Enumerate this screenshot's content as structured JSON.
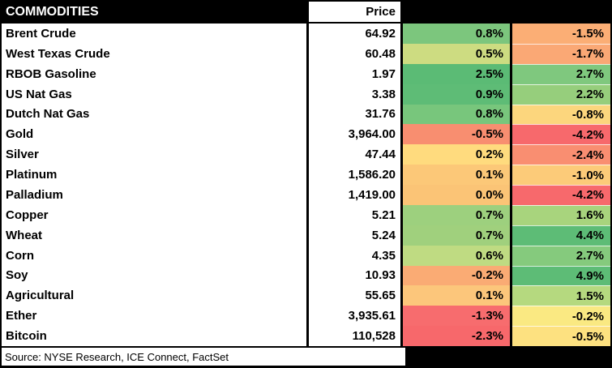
{
  "header": {
    "commodities_label": "COMMODITIES",
    "price_label": "Price"
  },
  "rows": [
    {
      "name": "Brent Crude",
      "price": "64.92",
      "pct1": "0.8%",
      "pct1_color": "#7CC67D",
      "pct2": "-1.5%",
      "pct2_color": "#FBAE75"
    },
    {
      "name": "West Texas Crude",
      "price": "60.48",
      "pct1": "0.5%",
      "pct1_color": "#CDDC81",
      "pct2": "-1.7%",
      "pct2_color": "#FAA875"
    },
    {
      "name": "RBOB Gasoline",
      "price": "1.97",
      "pct1": "2.5%",
      "pct1_color": "#5BBB75",
      "pct2": "2.7%",
      "pct2_color": "#7FC87E"
    },
    {
      "name": "US Nat Gas",
      "price": "3.38",
      "pct1": "0.9%",
      "pct1_color": "#5EBC76",
      "pct2": "2.2%",
      "pct2_color": "#96CE7C"
    },
    {
      "name": "Dutch Nat Gas",
      "price": "31.76",
      "pct1": "0.8%",
      "pct1_color": "#78C67C",
      "pct2": "-0.8%",
      "pct2_color": "#FCD67D"
    },
    {
      "name": "Gold",
      "price": "3,964.00",
      "pct1": "-0.5%",
      "pct1_color": "#F88E70",
      "pct2": "-4.2%",
      "pct2_color": "#F7696C"
    },
    {
      "name": "Silver",
      "price": "47.44",
      "pct1": "0.2%",
      "pct1_color": "#FFDB7E",
      "pct2": "-2.4%",
      "pct2_color": "#F98E71"
    },
    {
      "name": "Platinum",
      "price": "1,586.20",
      "pct1": "0.1%",
      "pct1_color": "#FCC878",
      "pct2": "-1.0%",
      "pct2_color": "#FCCB79"
    },
    {
      "name": "Palladium",
      "price": "1,419.00",
      "pct1": "0.0%",
      "pct1_color": "#FBC476",
      "pct2": "-4.2%",
      "pct2_color": "#F7696C"
    },
    {
      "name": "Copper",
      "price": "5.21",
      "pct1": "0.7%",
      "pct1_color": "#9DD07E",
      "pct2": "1.6%",
      "pct2_color": "#A8D47D"
    },
    {
      "name": "Wheat",
      "price": "5.24",
      "pct1": "0.7%",
      "pct1_color": "#A0D07D",
      "pct2": "4.4%",
      "pct2_color": "#5DBC76"
    },
    {
      "name": "Corn",
      "price": "4.35",
      "pct1": "0.6%",
      "pct1_color": "#BFDB82",
      "pct2": "2.7%",
      "pct2_color": "#85CA7D"
    },
    {
      "name": "Soy",
      "price": "10.93",
      "pct1": "-0.2%",
      "pct1_color": "#FAAB74",
      "pct2": "4.9%",
      "pct2_color": "#5DBC76"
    },
    {
      "name": "Agricultural",
      "price": "55.65",
      "pct1": "0.1%",
      "pct1_color": "#FCC67B",
      "pct2": "1.5%",
      "pct2_color": "#B5D97F"
    },
    {
      "name": "Ether",
      "price": "3,935.61",
      "pct1": "-1.3%",
      "pct1_color": "#F76C6E",
      "pct2": "-0.2%",
      "pct2_color": "#FAE982"
    },
    {
      "name": "Bitcoin",
      "price": "110,528",
      "pct1": "-2.3%",
      "pct1_color": "#F7686B",
      "pct2": "-0.5%",
      "pct2_color": "#FDE180"
    }
  ],
  "footer": {
    "source": "Source: NYSE Research, ICE Connect, FactSet"
  },
  "colors": {
    "header_bg": "#000000",
    "header_text": "#FFFFFF",
    "cell_bg": "#FFFFFF",
    "cell_text": "#000000",
    "border": "#000000"
  },
  "chart_data": {
    "type": "table",
    "title": "COMMODITIES",
    "headers": [
      "COMMODITIES",
      "Price",
      "",
      ""
    ],
    "categories": [
      "Brent Crude",
      "West Texas Crude",
      "RBOB Gasoline",
      "US Nat Gas",
      "Dutch Nat Gas",
      "Gold",
      "Silver",
      "Platinum",
      "Palladium",
      "Copper",
      "Wheat",
      "Corn",
      "Soy",
      "Agricultural",
      "Ether",
      "Bitcoin"
    ],
    "series": [
      {
        "name": "Price",
        "values": [
          64.92,
          60.48,
          1.97,
          3.38,
          31.76,
          3964.0,
          47.44,
          1586.2,
          1419.0,
          5.21,
          5.24,
          4.35,
          10.93,
          55.65,
          3935.61,
          110528
        ]
      },
      {
        "name": "pct_change_col1",
        "values": [
          0.8,
          0.5,
          2.5,
          0.9,
          0.8,
          -0.5,
          0.2,
          0.1,
          0.0,
          0.7,
          0.7,
          0.6,
          -0.2,
          0.1,
          -1.3,
          -2.3
        ]
      },
      {
        "name": "pct_change_col2",
        "values": [
          -1.5,
          -1.7,
          2.7,
          2.2,
          -0.8,
          -4.2,
          -2.4,
          -1.0,
          -4.2,
          1.6,
          4.4,
          2.7,
          4.9,
          1.5,
          -0.2,
          -0.5
        ]
      }
    ],
    "layout": {
      "heatmap_coloring": "red-yellow-green scale on percentage columns",
      "grid": true,
      "legend": "none"
    },
    "source_note": "Source: NYSE Research, ICE Connect, FactSet"
  }
}
